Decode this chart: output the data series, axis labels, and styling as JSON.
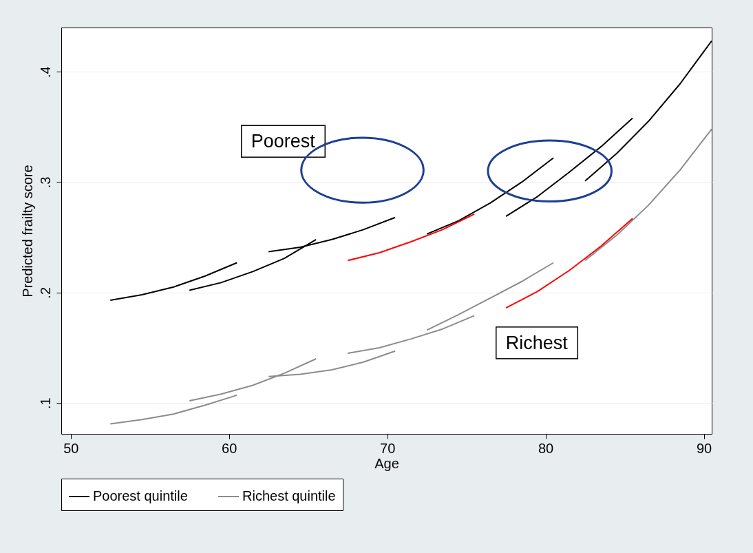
{
  "chart_data": {
    "type": "line",
    "xlabel": "Age",
    "ylabel": "Predicted frailty score",
    "xlim": [
      49.4,
      90.5
    ],
    "ylim": [
      0.072,
      0.44
    ],
    "xticks": [
      50,
      60,
      70,
      80,
      90
    ],
    "yticks": [
      {
        "value": 0.1,
        "label": ".1"
      },
      {
        "value": 0.2,
        "label": ".2"
      },
      {
        "value": 0.3,
        "label": ".3"
      },
      {
        "value": 0.4,
        "label": ".4"
      }
    ],
    "grid": "y",
    "legend": "bottom",
    "annotations": [
      "Poorest",
      "Richest"
    ],
    "series": [
      {
        "name": "Poorest quintile",
        "color": "#000000",
        "x": [
          52.5,
          54.5,
          56.5,
          58.5,
          60.5
        ],
        "values": [
          0.193,
          0.198,
          0.205,
          0.215,
          0.227
        ]
      },
      {
        "color": "#000000",
        "x": [
          57.5,
          59.5,
          61.5,
          63.5,
          65.5
        ],
        "values": [
          0.202,
          0.209,
          0.219,
          0.231,
          0.248
        ]
      },
      {
        "color": "#000000",
        "x": [
          62.5,
          64.5,
          66.5,
          68.5,
          70.5
        ],
        "values": [
          0.237,
          0.241,
          0.248,
          0.257,
          0.268
        ]
      },
      {
        "color": "#000000",
        "x": [
          72.5,
          74.5,
          76.5,
          78.5,
          80.5
        ],
        "values": [
          0.253,
          0.265,
          0.281,
          0.3,
          0.322
        ]
      },
      {
        "color": "#000000",
        "x": [
          77.5,
          79.5,
          81.5,
          83.5,
          85.5
        ],
        "values": [
          0.269,
          0.287,
          0.309,
          0.332,
          0.358
        ]
      },
      {
        "color": "#000000",
        "x": [
          82.5,
          84.5,
          86.5,
          88.5,
          90.5
        ],
        "values": [
          0.301,
          0.326,
          0.355,
          0.389,
          0.428
        ]
      },
      {
        "name": "Richest quintile",
        "color": "#8c8c8c",
        "x": [
          52.5,
          54.5,
          56.5,
          58.5,
          60.5
        ],
        "values": [
          0.081,
          0.085,
          0.09,
          0.098,
          0.107
        ]
      },
      {
        "color": "#8c8c8c",
        "x": [
          57.5,
          59.5,
          61.5,
          63.5,
          65.5
        ],
        "values": [
          0.102,
          0.108,
          0.116,
          0.127,
          0.14
        ]
      },
      {
        "color": "#8c8c8c",
        "x": [
          62.5,
          64.5,
          66.5,
          68.5,
          70.5
        ],
        "values": [
          0.124,
          0.126,
          0.13,
          0.137,
          0.147
        ]
      },
      {
        "color": "#8c8c8c",
        "x": [
          67.5,
          69.5,
          71.5,
          73.5,
          75.5
        ],
        "values": [
          0.145,
          0.15,
          0.158,
          0.167,
          0.179
        ]
      },
      {
        "color": "#8c8c8c",
        "x": [
          72.5,
          74.5,
          76.5,
          78.5,
          80.5
        ],
        "values": [
          0.166,
          0.18,
          0.195,
          0.21,
          0.227
        ]
      },
      {
        "color": "#8c8c8c",
        "x": [
          82.5,
          84.5,
          86.5,
          88.5,
          90.5
        ],
        "values": [
          0.229,
          0.252,
          0.279,
          0.311,
          0.348
        ]
      },
      {
        "color": "#ff0000",
        "x": [
          67.5,
          69.5,
          71.5,
          73.5,
          75.5
        ],
        "values": [
          0.229,
          0.236,
          0.246,
          0.257,
          0.271
        ]
      },
      {
        "color": "#ff0000",
        "x": [
          77.5,
          79.5,
          81.5,
          83.5,
          85.5
        ],
        "values": [
          0.186,
          0.201,
          0.22,
          0.242,
          0.267
        ]
      }
    ]
  }
}
